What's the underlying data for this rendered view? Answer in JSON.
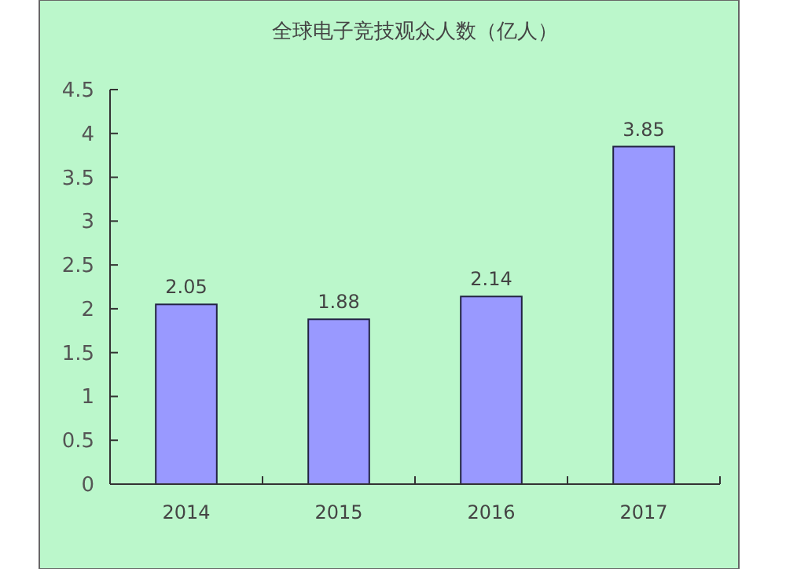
{
  "chart_data": {
    "type": "bar",
    "title": "全球电子竞技观众人数（亿人）",
    "categories": [
      "2014",
      "2015",
      "2016",
      "2017"
    ],
    "values": [
      2.05,
      1.88,
      2.14,
      3.85
    ],
    "color": "#9999ff",
    "ylim": [
      0,
      4.5
    ],
    "yticks": [
      0,
      0.5,
      1,
      1.5,
      2,
      2.5,
      3,
      3.5,
      4,
      4.5
    ],
    "data_labels": true
  }
}
